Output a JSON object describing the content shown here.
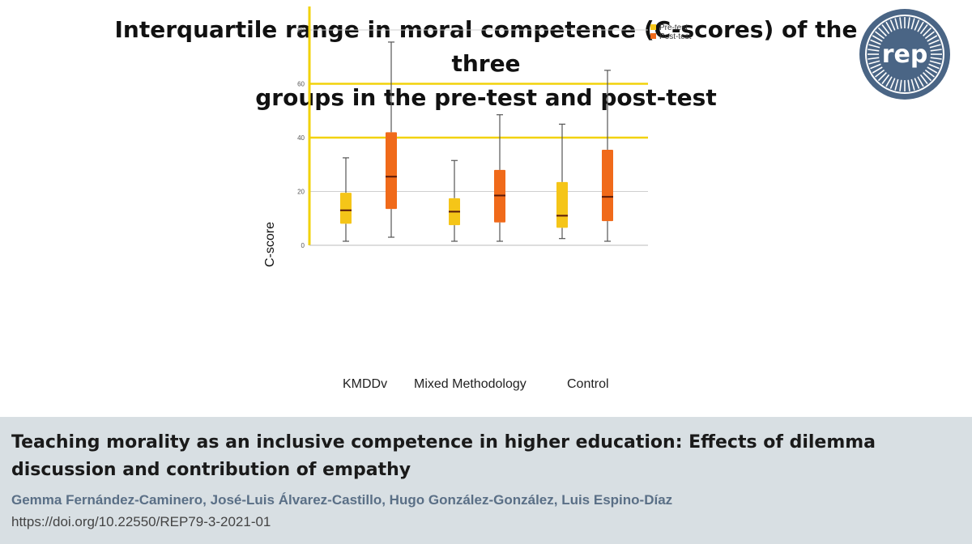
{
  "header": {
    "title_line1": "Interquartile range in moral competence (C-scores) of the three",
    "title_line2": "groups in the pre-test and post-test",
    "logo_text": "rep",
    "logo_color": "#4a6585"
  },
  "chart_data": {
    "type": "box",
    "categories": [
      "KMDDv",
      "Mixed Methodology",
      "Control"
    ],
    "ylabel": "C-score",
    "ylim": [
      0,
      85
    ],
    "yticks": [
      "0",
      "20",
      "40",
      "60",
      "80"
    ],
    "legend": {
      "placement": "top-right",
      "entries": [
        "Pre-test",
        "Post-test"
      ]
    },
    "series": [
      {
        "name": "Pre-test",
        "color": "#f5c518",
        "boxes": [
          {
            "min": 1.5,
            "q1": 8,
            "median": 13,
            "q3": 19.5,
            "max": 32.5
          },
          {
            "min": 1.5,
            "q1": 7.5,
            "median": 12.5,
            "q3": 17.5,
            "max": 31.5
          },
          {
            "min": 2.5,
            "q1": 6.5,
            "median": 11,
            "q3": 23.5,
            "max": 45
          }
        ]
      },
      {
        "name": "Post-test",
        "color": "#f06a1a",
        "boxes": [
          {
            "min": 3,
            "q1": 13.5,
            "median": 25.5,
            "q3": 42,
            "max": 75.5
          },
          {
            "min": 1.5,
            "q1": 8.5,
            "median": 18.5,
            "q3": 28,
            "max": 48.5
          },
          {
            "min": 1.5,
            "q1": 9,
            "median": 18,
            "q3": 35.5,
            "max": 65
          }
        ]
      }
    ],
    "highlight_lines": [
      40,
      60
    ],
    "grid_lines": [
      20,
      80
    ]
  },
  "footer": {
    "paper_title": "Teaching morality as an inclusive competence in higher education: Effects of dilemma discussion and contribution of empathy",
    "authors": "Gemma Fernández-Caminero, José-Luis Álvarez-Castillo, Hugo González-González, Luis Espino-Díaz",
    "doi": "https://doi.org/10.22550/REP79-3-2021-01"
  }
}
